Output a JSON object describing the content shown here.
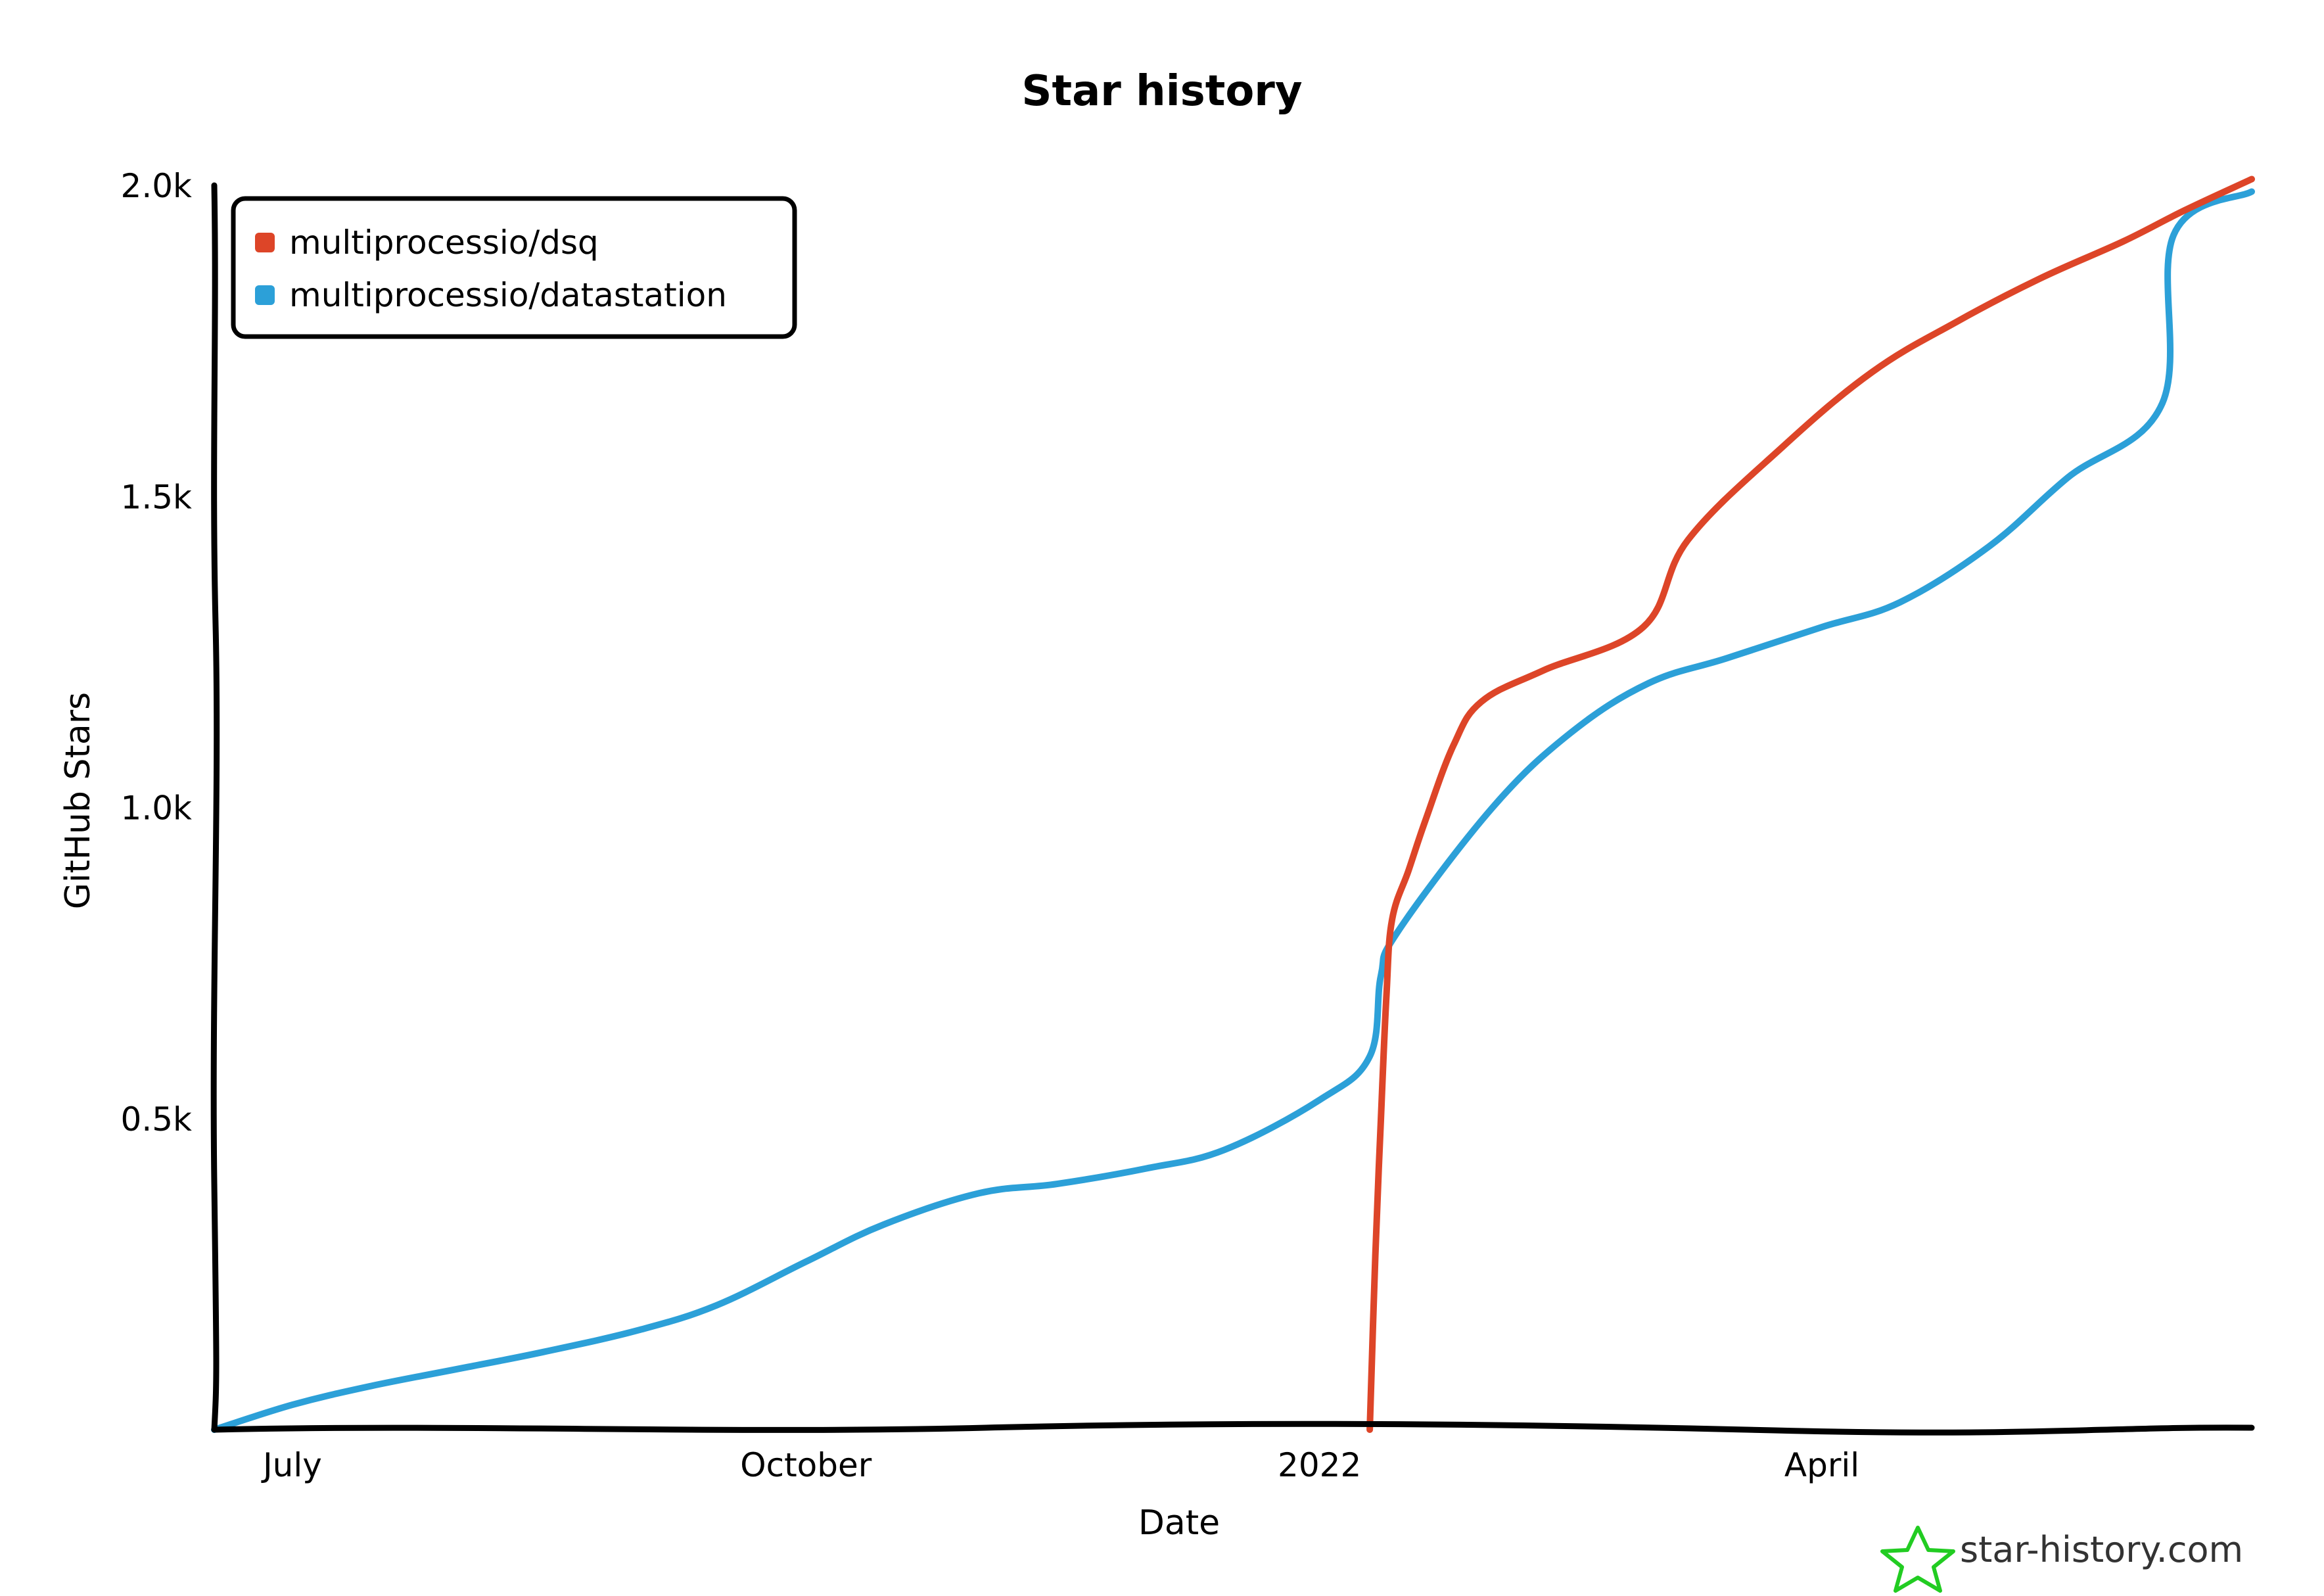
{
  "chart_data": {
    "type": "line",
    "title": "Star history",
    "xlabel": "Date",
    "ylabel": "GitHub Stars",
    "x_ticks": [
      "July",
      "October",
      "2022",
      "April"
    ],
    "y_ticks": [
      "0.5k",
      "1.0k",
      "1.5k",
      "2.0k"
    ],
    "ylim": [
      0,
      2000
    ],
    "xlim": [
      "2021-06-17",
      "2022-06-17"
    ],
    "grid": false,
    "legend_position": "top-left",
    "series": [
      {
        "name": "multiprocessio/dsq",
        "color": "#dd4528",
        "points": [
          {
            "x": "2022-01-10",
            "y": 0
          },
          {
            "x": "2022-01-11",
            "y": 280
          },
          {
            "x": "2022-01-12",
            "y": 500
          },
          {
            "x": "2022-01-13",
            "y": 700
          },
          {
            "x": "2022-01-14",
            "y": 820
          },
          {
            "x": "2022-01-17",
            "y": 900
          },
          {
            "x": "2022-01-20",
            "y": 980
          },
          {
            "x": "2022-01-25",
            "y": 1100
          },
          {
            "x": "2022-01-30",
            "y": 1170
          },
          {
            "x": "2022-02-10",
            "y": 1220
          },
          {
            "x": "2022-02-28",
            "y": 1290
          },
          {
            "x": "2022-03-08",
            "y": 1430
          },
          {
            "x": "2022-03-25",
            "y": 1580
          },
          {
            "x": "2022-04-10",
            "y": 1700
          },
          {
            "x": "2022-04-25",
            "y": 1780
          },
          {
            "x": "2022-05-10",
            "y": 1850
          },
          {
            "x": "2022-05-25",
            "y": 1910
          },
          {
            "x": "2022-06-05",
            "y": 1960
          },
          {
            "x": "2022-06-17",
            "y": 2010
          }
        ]
      },
      {
        "name": "multiprocessio/datastation",
        "color": "#2ca0d8",
        "points": [
          {
            "x": "2021-06-17",
            "y": 0
          },
          {
            "x": "2021-07-01",
            "y": 40
          },
          {
            "x": "2021-07-15",
            "y": 70
          },
          {
            "x": "2021-08-01",
            "y": 100
          },
          {
            "x": "2021-08-15",
            "y": 125
          },
          {
            "x": "2021-09-01",
            "y": 160
          },
          {
            "x": "2021-09-15",
            "y": 200
          },
          {
            "x": "2021-10-01",
            "y": 270
          },
          {
            "x": "2021-10-15",
            "y": 330
          },
          {
            "x": "2021-11-01",
            "y": 380
          },
          {
            "x": "2021-11-15",
            "y": 395
          },
          {
            "x": "2021-12-01",
            "y": 420
          },
          {
            "x": "2021-12-15",
            "y": 450
          },
          {
            "x": "2022-01-01",
            "y": 530
          },
          {
            "x": "2022-01-10",
            "y": 600
          },
          {
            "x": "2022-01-12",
            "y": 730
          },
          {
            "x": "2022-01-15",
            "y": 800
          },
          {
            "x": "2022-02-01",
            "y": 1000
          },
          {
            "x": "2022-02-15",
            "y": 1120
          },
          {
            "x": "2022-03-01",
            "y": 1200
          },
          {
            "x": "2022-03-15",
            "y": 1240
          },
          {
            "x": "2022-04-01",
            "y": 1290
          },
          {
            "x": "2022-04-15",
            "y": 1330
          },
          {
            "x": "2022-05-01",
            "y": 1420
          },
          {
            "x": "2022-05-15",
            "y": 1530
          },
          {
            "x": "2022-06-01",
            "y": 1650
          },
          {
            "x": "2022-06-03",
            "y": 1920
          },
          {
            "x": "2022-06-17",
            "y": 1990
          }
        ]
      }
    ]
  },
  "watermark": {
    "text": "star-history.com",
    "icon": "star-icon",
    "icon_color": "#22cc22"
  }
}
